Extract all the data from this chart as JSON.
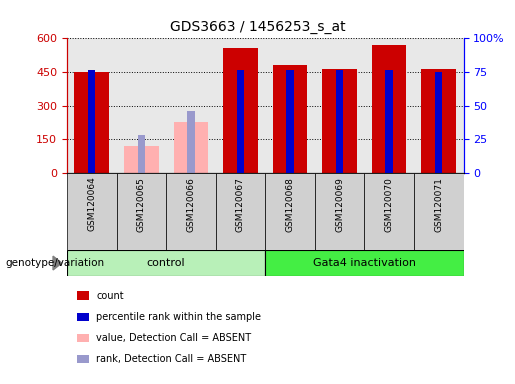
{
  "title": "GDS3663 / 1456253_s_at",
  "samples": [
    "GSM120064",
    "GSM120065",
    "GSM120066",
    "GSM120067",
    "GSM120068",
    "GSM120069",
    "GSM120070",
    "GSM120071"
  ],
  "red_values": [
    450,
    0,
    0,
    555,
    480,
    465,
    570,
    462
  ],
  "pink_values": [
    0,
    120,
    225,
    0,
    0,
    0,
    0,
    0
  ],
  "blue_values": [
    458,
    0,
    0,
    458,
    458,
    458,
    458,
    452
  ],
  "light_blue_values": [
    0,
    168,
    278,
    0,
    0,
    0,
    0,
    0
  ],
  "absent_mask": [
    false,
    true,
    true,
    false,
    false,
    false,
    false,
    false
  ],
  "ylim": [
    0,
    600
  ],
  "y2lim": [
    0,
    100
  ],
  "yticks": [
    0,
    150,
    300,
    450,
    600
  ],
  "y2ticks": [
    0,
    25,
    50,
    75,
    100
  ],
  "y2tick_labels": [
    "0",
    "25",
    "50",
    "75",
    "100%"
  ],
  "groups": [
    {
      "label": "control",
      "start": 0,
      "end": 4
    },
    {
      "label": "Gata4 inactivation",
      "start": 4,
      "end": 8
    }
  ],
  "group_color_light": "#b8f0b8",
  "group_color_dark": "#44ee44",
  "group_label": "genotype/variation",
  "bar_color_red": "#cc0000",
  "bar_color_pink": "#ffb0b0",
  "bar_color_blue": "#0000cc",
  "bar_color_lightblue": "#9999cc",
  "bar_width": 0.7,
  "blue_bar_width": 0.15,
  "legend_items": [
    {
      "label": "count",
      "color": "#cc0000"
    },
    {
      "label": "percentile rank within the sample",
      "color": "#0000cc"
    },
    {
      "label": "value, Detection Call = ABSENT",
      "color": "#ffb0b0"
    },
    {
      "label": "rank, Detection Call = ABSENT",
      "color": "#9999cc"
    }
  ],
  "plot_bg": "#e8e8e8",
  "xtick_bg": "#d0d0d0",
  "grid_color": "black",
  "tick_label_color_left": "#cc0000",
  "tick_label_color_right": "#0000ff",
  "fig_width": 5.15,
  "fig_height": 3.84,
  "dpi": 100
}
